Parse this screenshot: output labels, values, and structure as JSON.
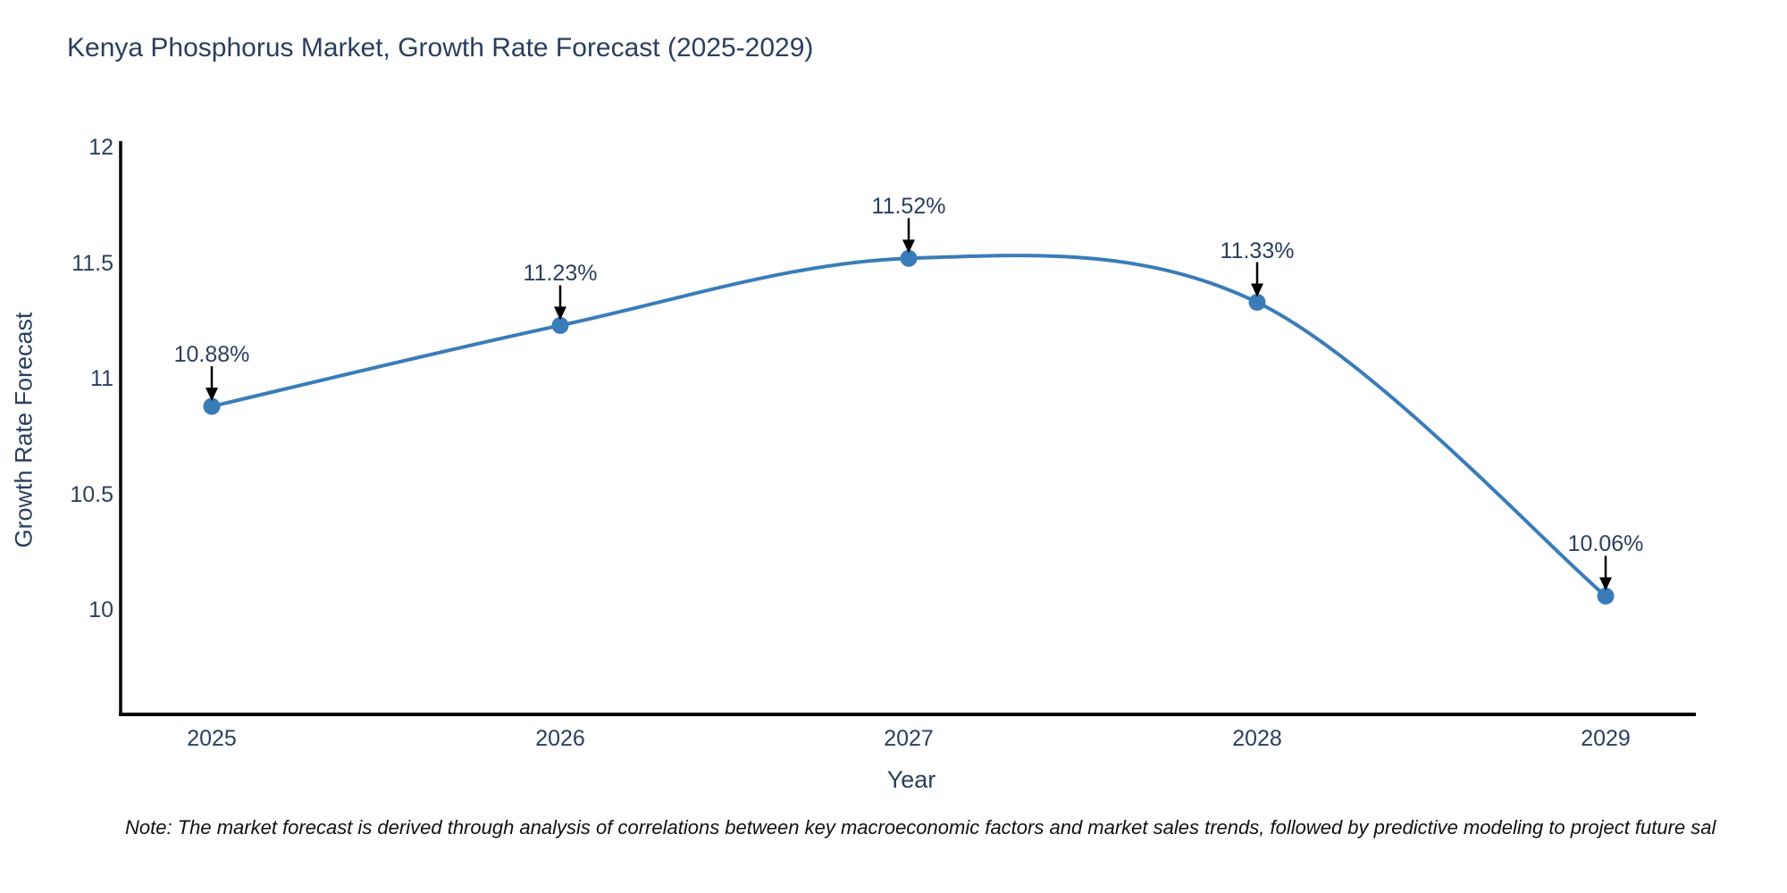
{
  "title": "Kenya Phosphorus Market, Growth Rate Forecast (2025-2029)",
  "note": "Note: The market forecast is derived through analysis of correlations between key macroeconomic factors and market sales trends, followed by predictive modeling to project future sal",
  "chart_data": {
    "type": "line",
    "line_shape": "spline",
    "title": "Kenya Phosphorus Market, Growth Rate Forecast (2025-2029)",
    "xlabel": "Year",
    "ylabel": "Growth Rate Forecast",
    "categories": [
      "2025",
      "2026",
      "2027",
      "2028",
      "2029"
    ],
    "values": [
      10.88,
      11.23,
      11.52,
      11.33,
      10.06
    ],
    "point_labels": [
      "10.88%",
      "11.23%",
      "11.52%",
      "11.33%",
      "10.06%"
    ],
    "yticks": [
      12,
      11.5,
      11,
      10.5,
      10
    ],
    "ytick_labels": [
      "12",
      "11.5",
      "11",
      "10.5",
      "10"
    ],
    "ylim": [
      9.55,
      12
    ],
    "grid": false,
    "legend": "none",
    "annotations_have_arrows": true,
    "colors": {
      "line": "#3a7cb8",
      "marker": "#3a7cb8",
      "axis": "#000000",
      "text": "#2a3f5f",
      "arrow": "#000000",
      "note_text": "#111111",
      "background": "#ffffff"
    }
  }
}
